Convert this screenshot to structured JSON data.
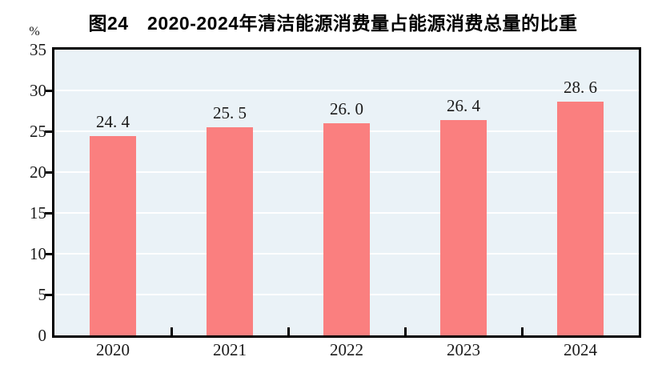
{
  "title": "图24　2020-2024年清洁能源消费量占能源消费总量的比重",
  "y_axis": {
    "unit_label": "%",
    "ticks": [
      "35",
      "30",
      "25",
      "20",
      "15",
      "10",
      "5",
      "0"
    ]
  },
  "chart_data": {
    "type": "bar",
    "title": "图24　2020-2024年清洁能源消费量占能源消费总量的比重",
    "categories": [
      "2020",
      "2021",
      "2022",
      "2023",
      "2024"
    ],
    "values": [
      24.4,
      25.5,
      26.0,
      26.4,
      28.6
    ],
    "display_labels": [
      "24. 4",
      "25. 5",
      "26. 0",
      "26. 4",
      "28. 6"
    ],
    "xlabel": "",
    "ylabel": "%",
    "ylim": [
      0,
      35
    ],
    "ytick_step": 5,
    "grid": true,
    "legend": "none",
    "colors": {
      "bar": "#FA7F7F",
      "plot_background": "#EAF2F7",
      "gridline": "#FFFFFF",
      "axis": "#000000",
      "text": "#1A1A1A"
    }
  }
}
